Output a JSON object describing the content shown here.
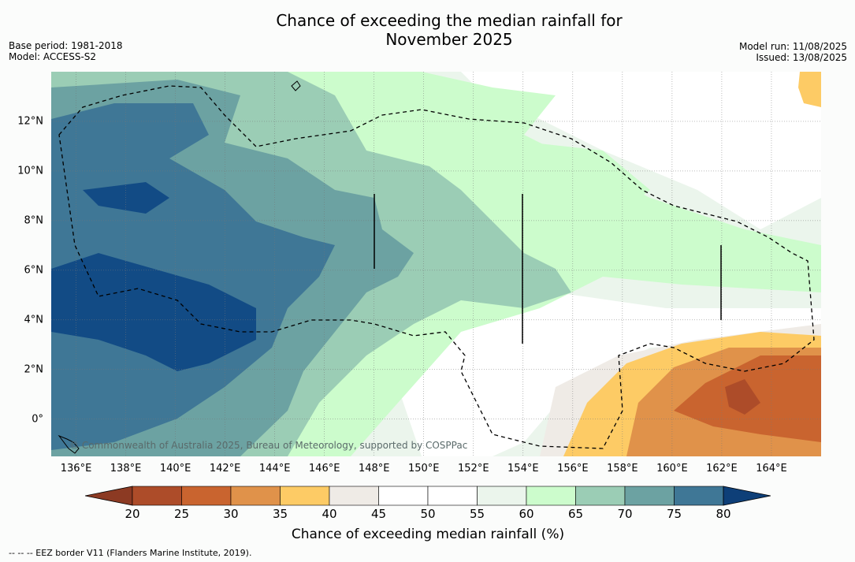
{
  "title_line1": "Chance of exceeding the median rainfall for",
  "title_line2": "November 2025",
  "base_period": "Base period: 1981-2018",
  "model": "Model: ACCESS-S2",
  "model_run": "Model run: 11/08/2025",
  "issued": "Issued: 13/08/2025",
  "copyright": "© Commonwealth of Australia 2025, Bureau of Meteorology, supported by COSPPac",
  "footnote": "--  --  -- EEZ border V11 (Flanders Marine Institute, 2019).",
  "colorbar_title": "Chance of exceeding median rainfall (%)",
  "lon_labels": [
    "136°E",
    "138°E",
    "140°E",
    "142°E",
    "144°E",
    "146°E",
    "148°E",
    "150°E",
    "152°E",
    "154°E",
    "156°E",
    "158°E",
    "160°E",
    "162°E",
    "164°E"
  ],
  "lat_labels": [
    "12°N",
    "10°N",
    "8°N",
    "6°N",
    "4°N",
    "2°N",
    "0°"
  ],
  "colorbar": {
    "ticks": [
      "20",
      "25",
      "30",
      "35",
      "40",
      "45",
      "50",
      "55",
      "60",
      "65",
      "70",
      "75",
      "80"
    ],
    "colors": [
      "#ad4c29",
      "#c9642f",
      "#e0924a",
      "#fdcb65",
      "#efebe6",
      "#ffffff",
      "#ffffff",
      "#ebf5ec",
      "#ccfccc",
      "#9bcdb5",
      "#6ca2a2",
      "#3f7796",
      "#124b85"
    ],
    "under_color": "#8c3a23",
    "over_color": "#0e3f78"
  },
  "map": {
    "extent": {
      "lon_min": 135,
      "lon_max": 166,
      "lat_min": -1.5,
      "lat_max": 14
    },
    "colors": {
      "p20": "#ad4c29",
      "p25": "#c9642f",
      "p30": "#e0924a",
      "p35": "#fdcb65",
      "p40": "#efebe6",
      "p45": "#ffffff",
      "p55": "#ebf5ec",
      "p60": "#ccfccc",
      "p65": "#9bcdb5",
      "p70": "#6ca2a2",
      "p75": "#3f7796",
      "p80": "#124b85"
    }
  }
}
